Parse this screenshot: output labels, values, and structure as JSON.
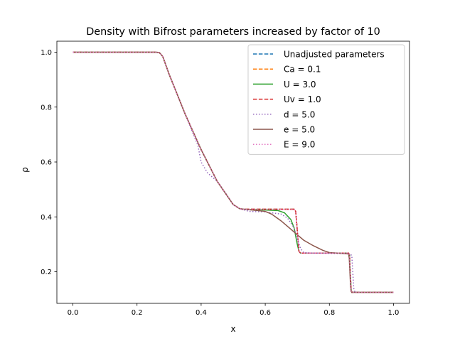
{
  "chart_data": {
    "type": "line",
    "title": "Density with Bifrost parameters increased by factor of 10",
    "xlabel": "x",
    "ylabel": "ρ",
    "xlim": [
      -0.05,
      1.05
    ],
    "ylim": [
      0.085,
      1.04
    ],
    "xticks": [
      0.0,
      0.2,
      0.4,
      0.6,
      0.8,
      1.0
    ],
    "xtick_labels": [
      "0.0",
      "0.2",
      "0.4",
      "0.6",
      "0.8",
      "1.0"
    ],
    "yticks": [
      0.2,
      0.4,
      0.6,
      0.8,
      1.0
    ],
    "ytick_labels": [
      "0.2",
      "0.4",
      "0.6",
      "0.8",
      "1.0"
    ],
    "grid": false,
    "legend_position": "top-right",
    "series": [
      {
        "name": "Unadjusted parameters",
        "color": "#1f77b4",
        "dash": "dashed",
        "x": [
          0,
          0.26,
          0.27,
          0.28,
          0.3,
          0.35,
          0.4,
          0.45,
          0.5,
          0.52,
          0.53,
          0.69,
          0.695,
          0.7,
          0.705,
          0.71,
          0.86,
          0.863,
          0.865,
          0.868,
          0.87,
          1.0
        ],
        "y": [
          1.0,
          1.0,
          0.998,
          0.985,
          0.92,
          0.775,
          0.645,
          0.53,
          0.445,
          0.43,
          0.428,
          0.428,
          0.42,
          0.35,
          0.275,
          0.268,
          0.268,
          0.26,
          0.2,
          0.135,
          0.125,
          0.125
        ]
      },
      {
        "name": "Ca = 0.1",
        "color": "#ff7f0e",
        "dash": "dashed",
        "x": [
          0,
          0.26,
          0.27,
          0.28,
          0.3,
          0.35,
          0.4,
          0.45,
          0.5,
          0.52,
          0.53,
          0.69,
          0.695,
          0.7,
          0.705,
          0.71,
          0.86,
          0.863,
          0.865,
          0.868,
          0.87,
          1.0
        ],
        "y": [
          1.0,
          1.0,
          0.998,
          0.985,
          0.92,
          0.775,
          0.645,
          0.53,
          0.445,
          0.43,
          0.428,
          0.428,
          0.42,
          0.35,
          0.275,
          0.268,
          0.268,
          0.26,
          0.2,
          0.135,
          0.125,
          0.125
        ]
      },
      {
        "name": "U = 3.0",
        "color": "#2ca02c",
        "dash": "solid",
        "x": [
          0,
          0.26,
          0.27,
          0.28,
          0.3,
          0.35,
          0.4,
          0.45,
          0.5,
          0.52,
          0.54,
          0.6,
          0.64,
          0.66,
          0.68,
          0.69,
          0.7,
          0.705,
          0.71,
          0.86,
          0.863,
          0.865,
          0.868,
          0.87,
          1.0
        ],
        "y": [
          1.0,
          1.0,
          0.998,
          0.985,
          0.92,
          0.775,
          0.645,
          0.53,
          0.445,
          0.43,
          0.427,
          0.425,
          0.423,
          0.415,
          0.39,
          0.36,
          0.3,
          0.275,
          0.268,
          0.268,
          0.26,
          0.2,
          0.135,
          0.125,
          0.125
        ]
      },
      {
        "name": "Uv = 1.0",
        "color": "#d62728",
        "dash": "dashed",
        "x": [
          0,
          0.26,
          0.27,
          0.28,
          0.3,
          0.35,
          0.4,
          0.45,
          0.5,
          0.52,
          0.53,
          0.69,
          0.695,
          0.7,
          0.705,
          0.71,
          0.86,
          0.863,
          0.865,
          0.868,
          0.87,
          1.0
        ],
        "y": [
          1.0,
          1.0,
          0.998,
          0.985,
          0.92,
          0.775,
          0.645,
          0.53,
          0.445,
          0.43,
          0.428,
          0.428,
          0.42,
          0.35,
          0.275,
          0.268,
          0.268,
          0.26,
          0.2,
          0.135,
          0.125,
          0.125
        ]
      },
      {
        "name": "d = 5.0",
        "color": "#9467bd",
        "dash": "dotted",
        "x": [
          0,
          0.26,
          0.27,
          0.28,
          0.3,
          0.35,
          0.39,
          0.4,
          0.42,
          0.45,
          0.48,
          0.5,
          0.52,
          0.55,
          0.6,
          0.65,
          0.67,
          0.69,
          0.7,
          0.71,
          0.72,
          0.75,
          0.86,
          0.87,
          0.873,
          0.876,
          0.88,
          1.0
        ],
        "y": [
          1.0,
          1.0,
          0.998,
          0.985,
          0.92,
          0.775,
          0.66,
          0.6,
          0.56,
          0.53,
          0.48,
          0.445,
          0.43,
          0.42,
          0.418,
          0.41,
          0.395,
          0.36,
          0.32,
          0.285,
          0.27,
          0.268,
          0.266,
          0.26,
          0.2,
          0.14,
          0.125,
          0.125
        ]
      },
      {
        "name": "e = 5.0",
        "color": "#8c564b",
        "dash": "solid",
        "x": [
          0,
          0.26,
          0.27,
          0.28,
          0.3,
          0.35,
          0.4,
          0.45,
          0.5,
          0.52,
          0.55,
          0.6,
          0.62,
          0.65,
          0.68,
          0.7,
          0.72,
          0.75,
          0.78,
          0.8,
          0.85,
          0.86,
          0.862,
          0.864,
          0.866,
          0.868,
          0.87,
          1.0
        ],
        "y": [
          1.0,
          1.0,
          0.998,
          0.985,
          0.92,
          0.775,
          0.645,
          0.53,
          0.445,
          0.43,
          0.426,
          0.42,
          0.41,
          0.385,
          0.355,
          0.335,
          0.315,
          0.295,
          0.278,
          0.27,
          0.266,
          0.265,
          0.25,
          0.2,
          0.15,
          0.128,
          0.125,
          0.125
        ]
      },
      {
        "name": "E = 9.0",
        "color": "#e377c2",
        "dash": "dotted",
        "x": [
          0,
          0.26,
          0.27,
          0.28,
          0.3,
          0.35,
          0.4,
          0.45,
          0.5,
          0.52,
          0.53,
          0.69,
          0.695,
          0.7,
          0.705,
          0.71,
          0.86,
          0.863,
          0.865,
          0.868,
          0.87,
          1.0
        ],
        "y": [
          1.0,
          1.0,
          0.998,
          0.985,
          0.92,
          0.775,
          0.645,
          0.53,
          0.445,
          0.43,
          0.428,
          0.428,
          0.42,
          0.35,
          0.275,
          0.268,
          0.268,
          0.26,
          0.2,
          0.135,
          0.125,
          0.125
        ]
      }
    ]
  }
}
